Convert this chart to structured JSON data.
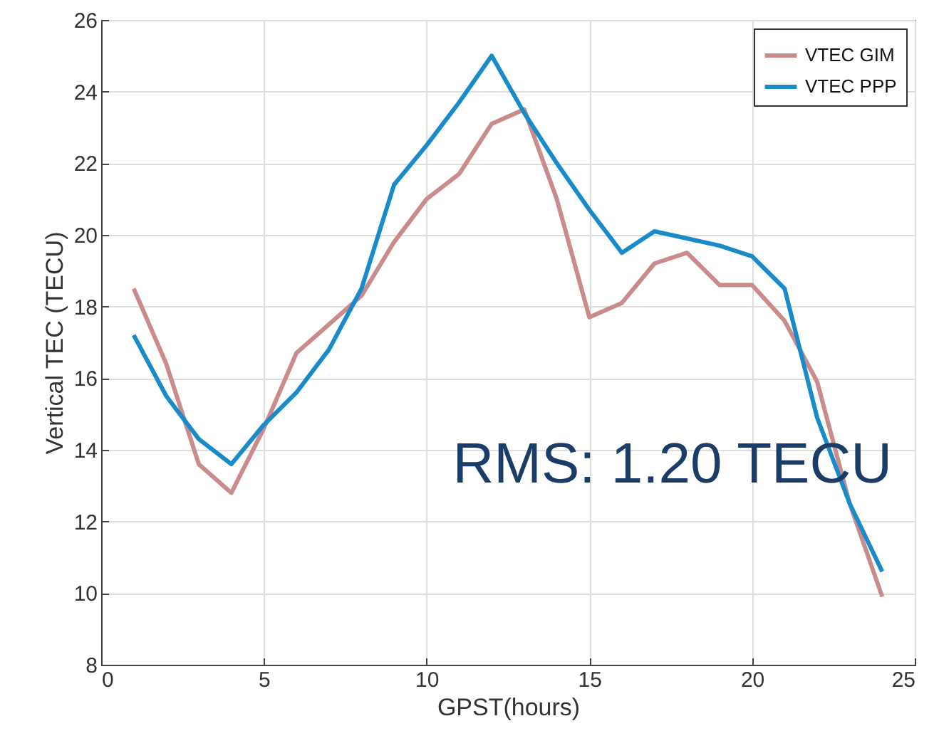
{
  "chart_data": {
    "type": "line",
    "xlabel": "GPST(hours)",
    "ylabel": "Vertical TEC (TECU)",
    "x": [
      1,
      2,
      3,
      4,
      5,
      6,
      7,
      8,
      9,
      10,
      11,
      12,
      13,
      14,
      15,
      16,
      17,
      18,
      19,
      20,
      21,
      22,
      23,
      24
    ],
    "series": [
      {
        "name": "VTEC GIM",
        "color": "#c98b8b",
        "values": [
          18.5,
          16.4,
          13.6,
          12.8,
          14.6,
          16.7,
          17.5,
          18.3,
          19.8,
          21.0,
          21.7,
          23.1,
          23.5,
          21.0,
          17.7,
          18.1,
          19.2,
          19.5,
          18.6,
          18.6,
          17.6,
          15.9,
          12.5,
          9.9
        ]
      },
      {
        "name": "VTEC PPP",
        "color": "#1a8bc9",
        "values": [
          17.2,
          15.5,
          14.3,
          13.6,
          14.7,
          15.6,
          16.8,
          18.5,
          21.4,
          22.5,
          23.7,
          25.0,
          23.4,
          22.0,
          20.7,
          19.5,
          20.1,
          19.9,
          19.7,
          19.4,
          18.5,
          14.9,
          12.5,
          10.6
        ]
      }
    ],
    "xlim": [
      0,
      25
    ],
    "xticks": [
      0,
      5,
      10,
      15,
      20,
      25
    ],
    "ylim": [
      8,
      26
    ],
    "yticks": [
      8,
      10,
      12,
      14,
      16,
      18,
      20,
      22,
      24,
      26
    ],
    "grid": true,
    "legend": "top right",
    "line_style": "solid",
    "marker": "none",
    "annotations": [
      "RMS: 1.20 TECU"
    ]
  }
}
